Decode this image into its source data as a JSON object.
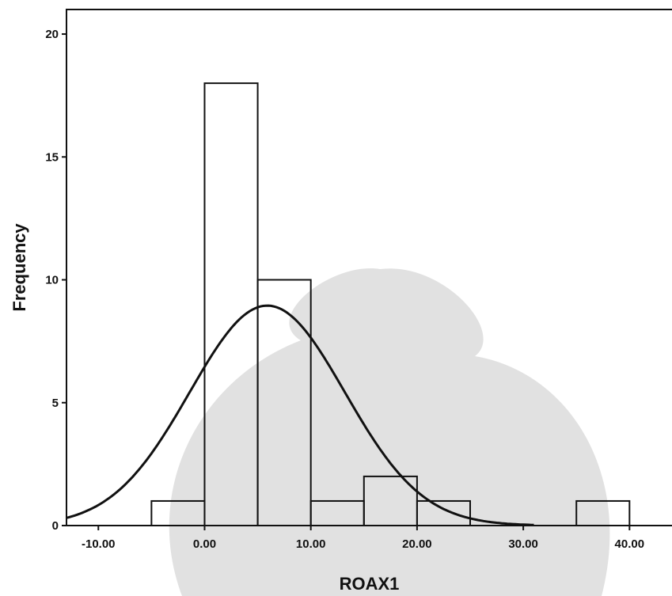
{
  "chart_data": {
    "type": "bar",
    "subtype": "histogram-with-normal-curve",
    "title": "",
    "xlabel": "ROAX1",
    "ylabel": "Frequency",
    "xlim": [
      -13,
      44
    ],
    "ylim": [
      0,
      21
    ],
    "x_ticks": [
      -10,
      0,
      10,
      20,
      30,
      40
    ],
    "x_tick_labels": [
      "-10.00",
      "0.00",
      "10.00",
      "20.00",
      "30.00",
      "40.00"
    ],
    "y_ticks": [
      0,
      5,
      10,
      15,
      20
    ],
    "y_tick_labels": [
      "0",
      "5",
      "10",
      "15",
      "20"
    ],
    "bins": [
      {
        "x0": -5,
        "x1": 0,
        "count": 1
      },
      {
        "x0": 0,
        "x1": 5,
        "count": 18
      },
      {
        "x0": 5,
        "x1": 10,
        "count": 10
      },
      {
        "x0": 10,
        "x1": 15,
        "count": 1
      },
      {
        "x0": 15,
        "x1": 20,
        "count": 2
      },
      {
        "x0": 20,
        "x1": 25,
        "count": 1
      },
      {
        "x0": 25,
        "x1": 30,
        "count": 0
      },
      {
        "x0": 30,
        "x1": 35,
        "count": 0
      },
      {
        "x0": 35,
        "x1": 40,
        "count": 1
      }
    ],
    "normal_curve": {
      "mean": 5.9,
      "std": 7.3,
      "peak": 8.95
    },
    "grid": false,
    "legend": "none"
  }
}
